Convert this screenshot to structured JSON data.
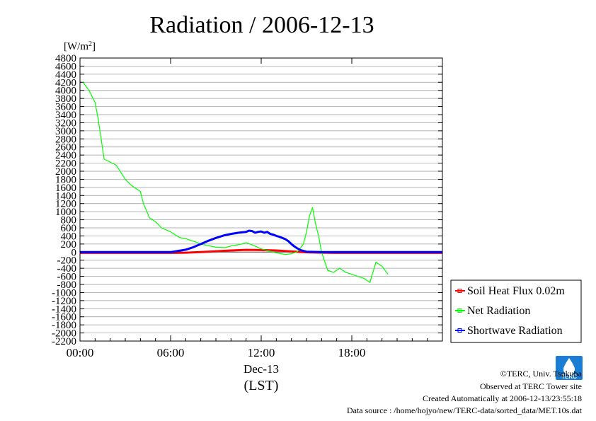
{
  "chart_data": {
    "type": "line",
    "title": "Radiation / 2006-12-13",
    "ylabel": "[W/m²]",
    "ylabel_main": "[W/m",
    "ylabel_sup": "2",
    "ylabel_end": "]",
    "xlabel_date": "Dec-13",
    "xlabel_unit": "(LST)",
    "xlim": [
      0,
      24
    ],
    "ylim": [
      -2200,
      4800
    ],
    "yticks": [
      4800,
      4600,
      4400,
      4200,
      4000,
      3800,
      3600,
      3400,
      3200,
      3000,
      2800,
      2600,
      2400,
      2200,
      2000,
      1800,
      1600,
      1400,
      1200,
      1000,
      800,
      600,
      400,
      200,
      0,
      -200,
      -400,
      -600,
      -800,
      -1000,
      -1200,
      -1400,
      -1600,
      -1800,
      -2000,
      -2200
    ],
    "xticks": [
      {
        "value": 0,
        "label": "00:00"
      },
      {
        "value": 6,
        "label": "06:00"
      },
      {
        "value": 12,
        "label": "12:00"
      },
      {
        "value": 18,
        "label": "18:00"
      }
    ],
    "grid": "horizontal",
    "legend_position": "bottom-right-outside",
    "series": [
      {
        "name": "Soil Heat Flux 0.02m",
        "color": "#ff0000",
        "x": [
          0,
          1,
          2,
          3,
          4,
          5,
          6,
          7,
          8,
          9,
          10,
          11,
          12,
          13,
          14,
          15,
          16,
          17,
          18,
          19,
          20,
          21,
          22,
          23,
          24
        ],
        "y": [
          -20,
          -20,
          -20,
          -20,
          -20,
          -20,
          -20,
          -15,
          0,
          20,
          40,
          55,
          50,
          40,
          15,
          -5,
          -15,
          -20,
          -20,
          -20,
          -20,
          -20,
          -20,
          -20,
          -20
        ]
      },
      {
        "name": "Net Radiation",
        "color": "#00ff00",
        "x": [
          0.2,
          0.6,
          1.0,
          1.2,
          1.4,
          1.6,
          2.4,
          3.0,
          3.4,
          4.0,
          4.2,
          4.6,
          5.0,
          5.4,
          6.0,
          6.6,
          7.0,
          7.6,
          8.0,
          8.6,
          9.0,
          9.6,
          10.0,
          10.6,
          11.0,
          11.4,
          12.0,
          12.6,
          13.0,
          13.6,
          14.0,
          14.4,
          14.8,
          15.0,
          15.2,
          15.4,
          15.6,
          15.8,
          16.0,
          16.4,
          16.8,
          17.2,
          17.6,
          18.0,
          18.4,
          18.8,
          19.2,
          19.6,
          20.0,
          20.4
        ],
        "y": [
          4200,
          4000,
          3700,
          3300,
          2800,
          2300,
          2150,
          1800,
          1650,
          1500,
          1200,
          850,
          750,
          600,
          500,
          360,
          330,
          260,
          200,
          150,
          120,
          110,
          150,
          190,
          230,
          180,
          80,
          20,
          -20,
          -60,
          -40,
          10,
          200,
          500,
          900,
          1100,
          700,
          400,
          0,
          -450,
          -500,
          -400,
          -500,
          -550,
          -600,
          -650,
          -750,
          -250,
          -350,
          -550
        ]
      },
      {
        "name": "Shortwave Radiation",
        "color": "#0000ff",
        "x": [
          0,
          4,
          6,
          7,
          7.5,
          8,
          8.5,
          9,
          9.5,
          10,
          10.5,
          11,
          11.2,
          11.4,
          11.6,
          11.8,
          12,
          12.2,
          12.4,
          12.6,
          12.8,
          13,
          13.2,
          13.4,
          13.6,
          13.8,
          14,
          14.2,
          14.4,
          14.6,
          14.8,
          15,
          16,
          20,
          24
        ],
        "y": [
          0,
          0,
          0,
          60,
          120,
          200,
          280,
          350,
          410,
          450,
          480,
          500,
          530,
          520,
          480,
          500,
          510,
          480,
          500,
          450,
          430,
          400,
          380,
          350,
          320,
          270,
          200,
          140,
          90,
          50,
          30,
          10,
          0,
          0,
          0
        ]
      }
    ]
  },
  "footer": {
    "copyright": "©TERC, Univ. Tsukuba",
    "observed": "Observed at TERC Tower site",
    "created": "Created Automatically at 2006-12-13/23:55:18",
    "source": "Data source : /home/hojyo/new/TERC-data/sorted_data/MET.10s.dat"
  },
  "logo": {
    "text": "TERC",
    "color": "#1a7fd4"
  }
}
